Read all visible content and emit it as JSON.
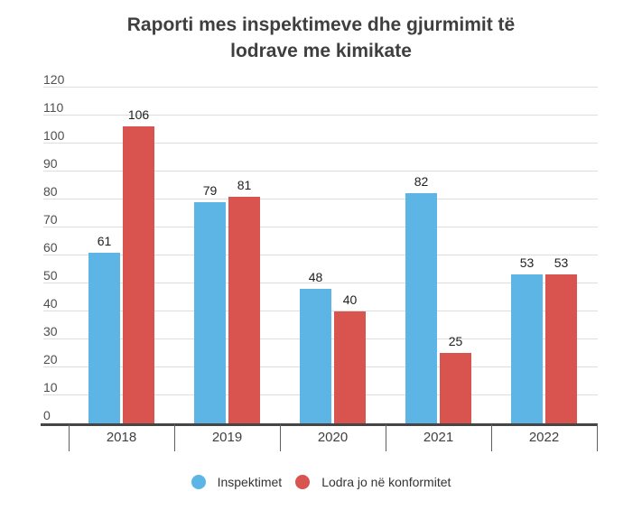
{
  "title_lines": [
    "Raporti mes inspektimeve dhe gjurmimit të",
    "lodrave me kimikate"
  ],
  "chart_data": {
    "type": "bar",
    "title": "Raporti mes inspektimeve dhe gjurmimit të lodrave me kimikate",
    "categories": [
      "2018",
      "2019",
      "2020",
      "2021",
      "2022"
    ],
    "series": [
      {
        "name": "Inspektimet",
        "color": "#5db5e6",
        "values": [
          61,
          79,
          48,
          82,
          53
        ]
      },
      {
        "name": "Lodra jo në konformitet",
        "color": "#d9534f",
        "values": [
          106,
          81,
          40,
          25,
          53
        ]
      }
    ],
    "ylim": [
      0,
      120
    ],
    "ytick_step": 10,
    "grid": true,
    "value_labels": true,
    "legend_position": "bottom",
    "xlabel": "",
    "ylabel": ""
  },
  "colors": {
    "background": "#ffffff",
    "title_text": "#3f3f3f",
    "gridline": "#dedede",
    "axis_line": "#454545",
    "tick_text": "#4f4f4f",
    "value_label_text": "#1f1f1f",
    "series_inspektimet": "#5db5e6",
    "series_jo_konformitet": "#d9534f"
  }
}
